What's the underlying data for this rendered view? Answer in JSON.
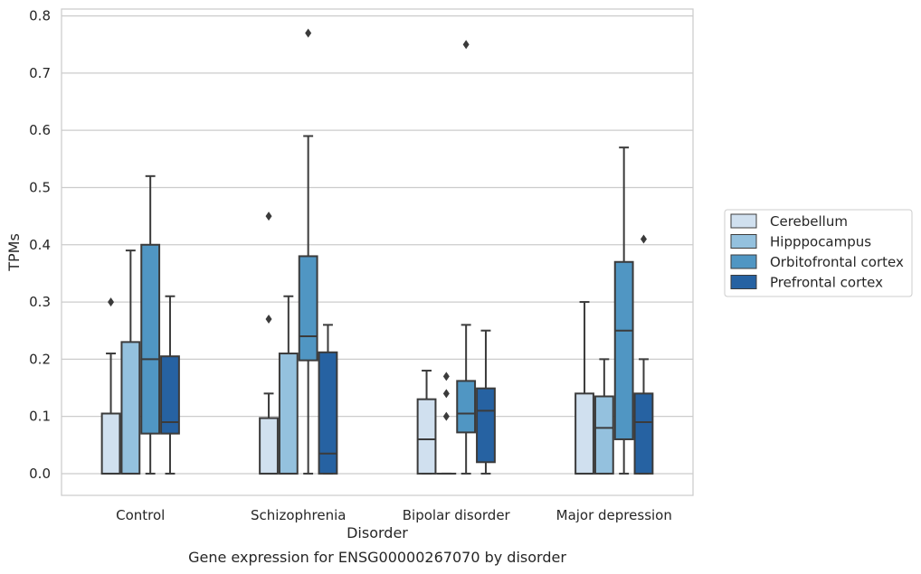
{
  "chart_data": {
    "type": "box",
    "caption": "Gene expression for ENSG00000267070 by disorder",
    "xlabel": "Disorder",
    "ylabel": "TPMs",
    "ylim": [
      -0.038,
      0.812
    ],
    "yticks": [
      "0.0",
      "0.1",
      "0.2",
      "0.3",
      "0.4",
      "0.5",
      "0.6",
      "0.7",
      "0.8"
    ],
    "grid": "horizontal",
    "legend_position": "right",
    "categories": [
      "Control",
      "Schizophrenia",
      "Bipolar disorder",
      "Major depression"
    ],
    "series": [
      {
        "name": "Cerebellum",
        "color": "#d0e0ef",
        "boxes": [
          {
            "min": 0.0,
            "q1": 0.0,
            "median": 0.0,
            "q3": 0.105,
            "max": 0.21,
            "outliers": [
              0.3
            ]
          },
          {
            "min": 0.0,
            "q1": 0.0,
            "median": 0.0,
            "q3": 0.097,
            "max": 0.14,
            "outliers": [
              0.27,
              0.45
            ]
          },
          {
            "min": 0.0,
            "q1": 0.0,
            "median": 0.06,
            "q3": 0.13,
            "max": 0.18,
            "outliers": []
          },
          {
            "min": 0.0,
            "q1": 0.0,
            "median": 0.0,
            "q3": 0.14,
            "max": 0.3,
            "outliers": []
          }
        ]
      },
      {
        "name": "Hipppocampus",
        "color": "#94c1de",
        "boxes": [
          {
            "min": 0.0,
            "q1": 0.0,
            "median": 0.0,
            "q3": 0.23,
            "max": 0.39,
            "outliers": []
          },
          {
            "min": 0.0,
            "q1": 0.0,
            "median": 0.0,
            "q3": 0.21,
            "max": 0.31,
            "outliers": []
          },
          {
            "min": 0.0,
            "q1": 0.0,
            "median": 0.0,
            "q3": 0.0,
            "max": 0.0,
            "outliers": [
              0.1,
              0.14,
              0.17
            ]
          },
          {
            "min": 0.0,
            "q1": 0.0,
            "median": 0.08,
            "q3": 0.135,
            "max": 0.2,
            "outliers": []
          }
        ]
      },
      {
        "name": "Orbitofrontal cortex",
        "color": "#5096c3",
        "boxes": [
          {
            "min": 0.0,
            "q1": 0.07,
            "median": 0.2,
            "q3": 0.4,
            "max": 0.52,
            "outliers": []
          },
          {
            "min": 0.0,
            "q1": 0.198,
            "median": 0.24,
            "q3": 0.38,
            "max": 0.59,
            "outliers": [
              0.77
            ]
          },
          {
            "min": 0.0,
            "q1": 0.072,
            "median": 0.105,
            "q3": 0.162,
            "max": 0.26,
            "outliers": [
              0.75
            ]
          },
          {
            "min": 0.0,
            "q1": 0.06,
            "median": 0.25,
            "q3": 0.37,
            "max": 0.57,
            "outliers": []
          }
        ]
      },
      {
        "name": "Prefrontal cortex",
        "color": "#2662a2",
        "boxes": [
          {
            "min": 0.0,
            "q1": 0.07,
            "median": 0.09,
            "q3": 0.205,
            "max": 0.31,
            "outliers": []
          },
          {
            "min": 0.0,
            "q1": 0.0,
            "median": 0.035,
            "q3": 0.212,
            "max": 0.26,
            "outliers": []
          },
          {
            "min": 0.0,
            "q1": 0.02,
            "median": 0.11,
            "q3": 0.149,
            "max": 0.25,
            "outliers": []
          },
          {
            "min": 0.0,
            "q1": 0.0,
            "median": 0.09,
            "q3": 0.14,
            "max": 0.2,
            "outliers": [
              0.41
            ]
          }
        ]
      }
    ]
  }
}
